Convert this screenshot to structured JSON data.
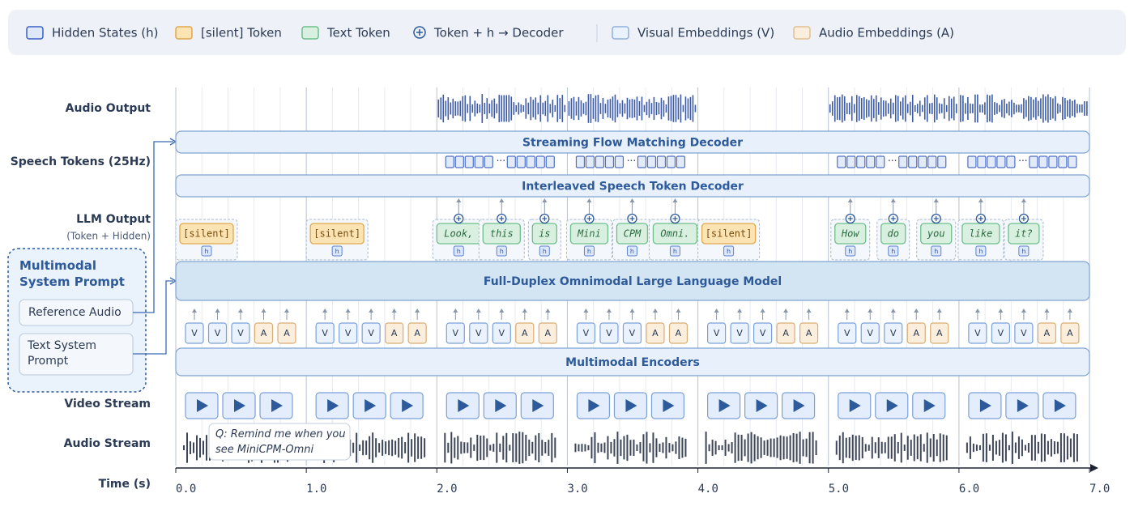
{
  "legend": {
    "items": [
      "Hidden States (h)",
      "[silent] Token",
      "Text Token",
      "Token + h → Decoder",
      "Visual Embeddings (V)",
      "Audio Embeddings (A)"
    ]
  },
  "rows": {
    "audio_output": "Audio Output",
    "speech_tokens": "Speech Tokens (25Hz)",
    "llm_output": "LLM Output",
    "llm_output_note": "(Token + Hidden)",
    "video_stream": "Video Stream",
    "audio_stream": "Audio Stream",
    "time": "Time (s)"
  },
  "blocks": [
    "Streaming Flow Matching Decoder",
    "Interleaved Speech Token Decoder",
    "Full-Duplex Omnimodal Large Language Model",
    "Multimodal Encoders"
  ],
  "system_prompt": {
    "title": "Multimodal System Prompt",
    "items": [
      "Reference Audio",
      "Text System Prompt"
    ]
  },
  "llm_segments": [
    [
      {
        "text": "[silent]",
        "kind": "silent"
      }
    ],
    [
      {
        "text": "[silent]",
        "kind": "silent"
      }
    ],
    [
      {
        "text": "Look,",
        "kind": "text"
      },
      {
        "text": "this",
        "kind": "text"
      },
      {
        "text": "is",
        "kind": "text"
      }
    ],
    [
      {
        "text": "Mini",
        "kind": "text"
      },
      {
        "text": "CPM",
        "kind": "text"
      },
      {
        "text": "Omni.",
        "kind": "text"
      }
    ],
    [
      {
        "text": "[silent]",
        "kind": "silent"
      }
    ],
    [
      {
        "text": "How",
        "kind": "text"
      },
      {
        "text": "do",
        "kind": "text"
      },
      {
        "text": "you",
        "kind": "text"
      }
    ],
    [
      {
        "text": "like",
        "kind": "text"
      },
      {
        "text": "it?",
        "kind": "text"
      }
    ]
  ],
  "hidden_label": "h",
  "embedding_labels": [
    "V",
    "V",
    "V",
    "A",
    "A"
  ],
  "speech_token_gap": "···",
  "annotation": "Q: Remind me when you see MiniCPM-Omni",
  "time_ticks": [
    "0.0",
    "1.0",
    "2.0",
    "3.0",
    "4.0",
    "5.0",
    "6.0",
    "7.0"
  ]
}
